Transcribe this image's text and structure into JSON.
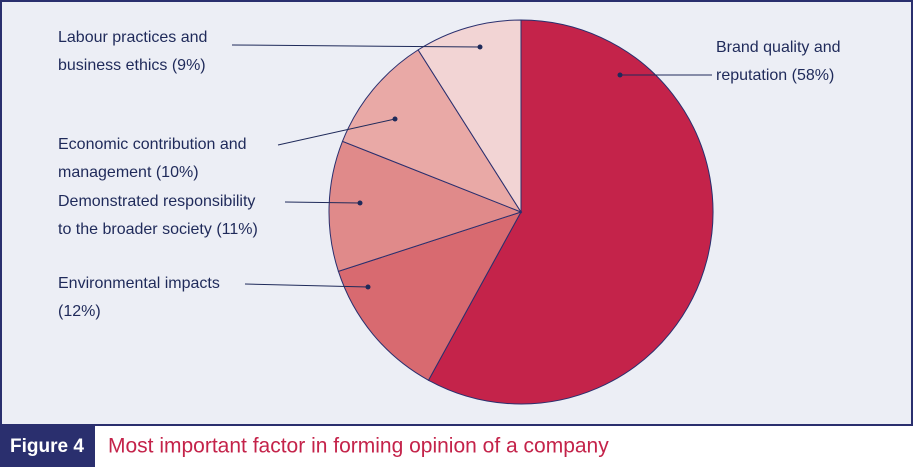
{
  "chart_data": {
    "type": "pie",
    "figure_label": "Figure 4",
    "title": "Most important factor in forming opinion of a company",
    "categories": [
      [
        "Brand quality and",
        "reputation (58%)"
      ],
      [
        "Environmental impacts",
        "(12%)"
      ],
      [
        "Demonstrated responsibility",
        "to the broader society (11%)"
      ],
      [
        "Economic contribution and",
        "management (10%)"
      ],
      [
        "Labour practices and",
        "business ethics (9%)"
      ]
    ],
    "values": [
      58,
      12,
      11,
      10,
      9
    ],
    "colors": [
      "#c4234a",
      "#d86a70",
      "#e08a8a",
      "#e9a9a6",
      "#f2d4d4"
    ]
  }
}
